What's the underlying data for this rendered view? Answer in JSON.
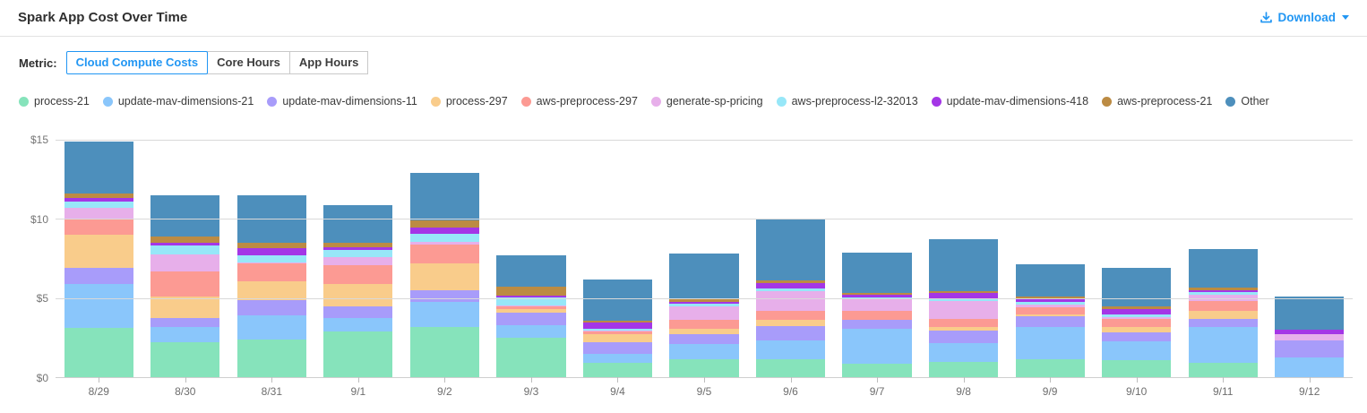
{
  "header": {
    "title": "Spark App Cost Over Time",
    "download_label": "Download"
  },
  "metric": {
    "label": "Metric:",
    "options": [
      {
        "label": "Cloud Compute Costs",
        "selected": true
      },
      {
        "label": "Core Hours",
        "selected": false
      },
      {
        "label": "App Hours",
        "selected": false
      }
    ]
  },
  "accent_color": "#2196F3",
  "chart_data": {
    "type": "bar",
    "stacked": true,
    "title": "Spark App Cost Over Time",
    "xlabel": "",
    "ylabel": "",
    "ylim": [
      0,
      15
    ],
    "grid": true,
    "legend_position": "top",
    "y_ticks": [
      {
        "value": 0,
        "label": "$0"
      },
      {
        "value": 5,
        "label": "$5"
      },
      {
        "value": 10,
        "label": "$10"
      },
      {
        "value": 15,
        "label": "$15"
      }
    ],
    "categories": [
      "8/29",
      "8/30",
      "8/31",
      "9/1",
      "9/2",
      "9/3",
      "9/4",
      "9/5",
      "9/6",
      "9/7",
      "9/8",
      "9/9",
      "9/10",
      "9/11",
      "9/12"
    ],
    "series": [
      {
        "name": "process-21",
        "color": "#86E3BB",
        "values": [
          3.1,
          2.2,
          2.4,
          2.9,
          3.15,
          2.5,
          0.9,
          1.15,
          1.15,
          0.85,
          0.95,
          1.15,
          1.05,
          0.9,
          0
        ]
      },
      {
        "name": "update-mav-dimensions-21",
        "color": "#8AC6FB",
        "values": [
          2.8,
          0.95,
          1.5,
          0.85,
          1.6,
          0.8,
          0.6,
          0.95,
          1.2,
          2.2,
          1.2,
          2.0,
          1.2,
          2.25,
          1.25
        ]
      },
      {
        "name": "update-mav-dimensions-11",
        "color": "#A89CFA",
        "values": [
          1.0,
          0.6,
          0.95,
          0.75,
          0.75,
          0.8,
          0.7,
          0.6,
          0.85,
          0.55,
          0.8,
          0.7,
          0.6,
          0.55,
          1.1
        ]
      },
      {
        "name": "process-297",
        "color": "#F9CC8B",
        "values": [
          2.1,
          1.35,
          1.2,
          1.4,
          1.7,
          0.2,
          0.5,
          0.35,
          0.45,
          0.05,
          0.25,
          0.1,
          0.3,
          0.5,
          0
        ]
      },
      {
        "name": "aws-preprocess-297",
        "color": "#FC9A93",
        "values": [
          1.0,
          1.6,
          1.15,
          1.2,
          1.2,
          0.2,
          0.2,
          0.6,
          0.55,
          0.55,
          0.5,
          0.45,
          0.55,
          0.6,
          0
        ]
      },
      {
        "name": "generate-sp-pricing",
        "color": "#E7AFEA",
        "values": [
          0.7,
          1.05,
          0.05,
          0.5,
          0.15,
          0.05,
          0.05,
          0.85,
          1.25,
          0.7,
          1.1,
          0.2,
          0.1,
          0.4,
          0.35
        ]
      },
      {
        "name": "aws-preprocess-l2-32013",
        "color": "#97E7F8",
        "values": [
          0.4,
          0.55,
          0.45,
          0.45,
          0.5,
          0.5,
          0.1,
          0.15,
          0.15,
          0.15,
          0.15,
          0.15,
          0.15,
          0.2,
          0
        ]
      },
      {
        "name": "update-mav-dimensions-418",
        "color": "#A436E6",
        "values": [
          0.25,
          0.2,
          0.45,
          0.15,
          0.4,
          0.1,
          0.4,
          0.1,
          0.35,
          0.15,
          0.35,
          0.2,
          0.35,
          0.1,
          0.3
        ]
      },
      {
        "name": "aws-preprocess-21",
        "color": "#BC8B43",
        "values": [
          0.25,
          0.4,
          0.35,
          0.3,
          0.45,
          0.55,
          0.1,
          0.25,
          0.15,
          0.15,
          0.15,
          0.15,
          0.2,
          0.15,
          0
        ]
      },
      {
        "name": "Other",
        "color": "#4D8FBC",
        "values": [
          3.3,
          2.6,
          3.0,
          2.4,
          3.0,
          2.0,
          2.65,
          2.8,
          3.9,
          2.55,
          3.25,
          2.05,
          2.4,
          2.45,
          2.1
        ]
      }
    ]
  }
}
